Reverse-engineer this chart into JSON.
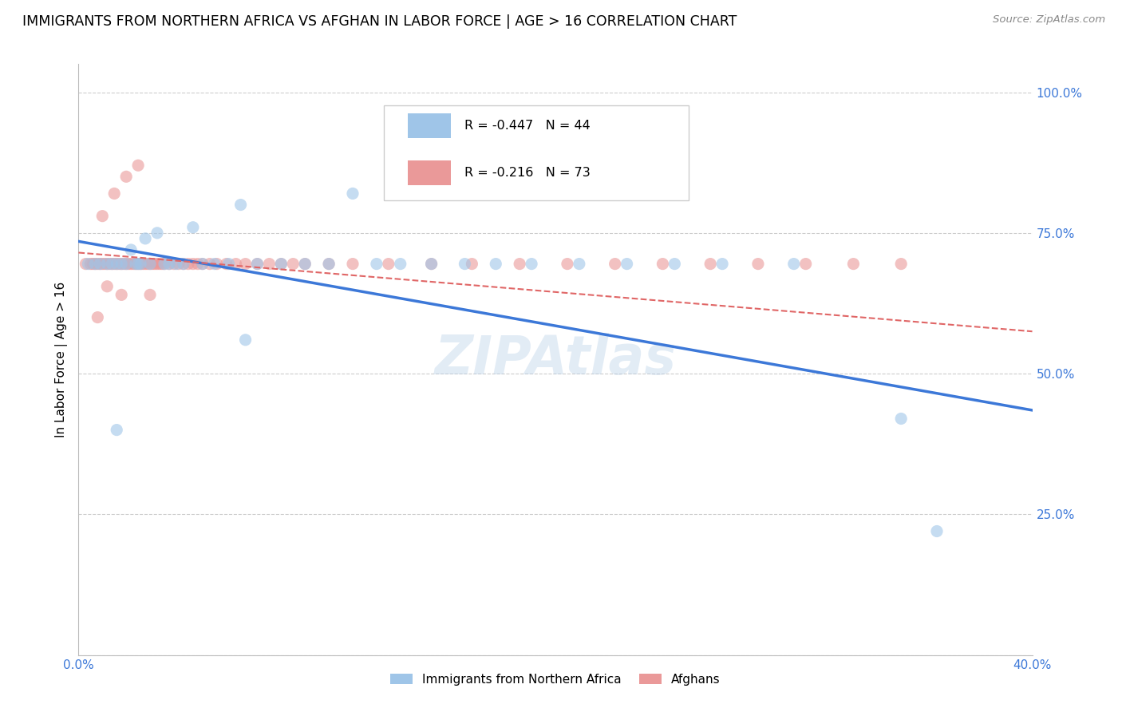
{
  "title": "IMMIGRANTS FROM NORTHERN AFRICA VS AFGHAN IN LABOR FORCE | AGE > 16 CORRELATION CHART",
  "source": "Source: ZipAtlas.com",
  "ylabel": "In Labor Force | Age > 16",
  "xlim": [
    0.0,
    0.4
  ],
  "ylim": [
    0.0,
    1.05
  ],
  "yticks": [
    0.0,
    0.25,
    0.5,
    0.75,
    1.0
  ],
  "ytick_labels": [
    "",
    "25.0%",
    "50.0%",
    "75.0%",
    "100.0%"
  ],
  "xticks": [
    0.0,
    0.05,
    0.1,
    0.15,
    0.2,
    0.25,
    0.3,
    0.35,
    0.4
  ],
  "xtick_labels": [
    "0.0%",
    "",
    "",
    "",
    "",
    "",
    "",
    "",
    "40.0%"
  ],
  "legend_r1": "-0.447",
  "legend_n1": "44",
  "legend_r2": "-0.216",
  "legend_n2": "73",
  "watermark": "ZIPAtlas",
  "color_blue": "#9fc5e8",
  "color_pink": "#ea9999",
  "color_blue_dark": "#3c78d8",
  "color_pink_dark": "#e06666",
  "color_axis_labels": "#3c78d8",
  "color_grid": "#cccccc",
  "title_fontsize": 12.5,
  "axis_label_fontsize": 11,
  "tick_fontsize": 11,
  "blue_line_x": [
    0.0,
    0.4
  ],
  "blue_line_y": [
    0.735,
    0.435
  ],
  "pink_line_x": [
    0.0,
    0.4
  ],
  "pink_line_y": [
    0.715,
    0.575
  ],
  "blue_x": [
    0.004,
    0.007,
    0.009,
    0.012,
    0.014,
    0.016,
    0.018,
    0.02,
    0.022,
    0.024,
    0.026,
    0.028,
    0.03,
    0.033,
    0.036,
    0.038,
    0.041,
    0.044,
    0.048,
    0.052,
    0.057,
    0.063,
    0.068,
    0.075,
    0.085,
    0.095,
    0.105,
    0.115,
    0.125,
    0.135,
    0.148,
    0.162,
    0.175,
    0.19,
    0.21,
    0.23,
    0.25,
    0.27,
    0.3,
    0.345,
    0.016,
    0.025,
    0.07,
    0.36
  ],
  "blue_y": [
    0.695,
    0.695,
    0.695,
    0.695,
    0.695,
    0.695,
    0.695,
    0.695,
    0.72,
    0.695,
    0.695,
    0.74,
    0.695,
    0.75,
    0.695,
    0.695,
    0.695,
    0.695,
    0.76,
    0.695,
    0.695,
    0.695,
    0.8,
    0.695,
    0.695,
    0.695,
    0.695,
    0.82,
    0.695,
    0.695,
    0.695,
    0.695,
    0.695,
    0.695,
    0.695,
    0.695,
    0.695,
    0.695,
    0.695,
    0.42,
    0.4,
    0.695,
    0.56,
    0.22
  ],
  "pink_x": [
    0.003,
    0.005,
    0.006,
    0.007,
    0.008,
    0.009,
    0.01,
    0.011,
    0.012,
    0.013,
    0.014,
    0.015,
    0.016,
    0.017,
    0.018,
    0.019,
    0.02,
    0.021,
    0.022,
    0.023,
    0.024,
    0.025,
    0.026,
    0.027,
    0.028,
    0.029,
    0.03,
    0.031,
    0.032,
    0.033,
    0.034,
    0.035,
    0.036,
    0.038,
    0.04,
    0.042,
    0.044,
    0.046,
    0.048,
    0.05,
    0.052,
    0.055,
    0.058,
    0.062,
    0.066,
    0.07,
    0.075,
    0.08,
    0.085,
    0.09,
    0.095,
    0.105,
    0.115,
    0.13,
    0.148,
    0.165,
    0.185,
    0.205,
    0.225,
    0.245,
    0.265,
    0.285,
    0.305,
    0.325,
    0.345,
    0.01,
    0.015,
    0.02,
    0.025,
    0.03,
    0.008,
    0.012,
    0.018
  ],
  "pink_y": [
    0.695,
    0.695,
    0.695,
    0.695,
    0.695,
    0.695,
    0.695,
    0.695,
    0.695,
    0.695,
    0.695,
    0.695,
    0.695,
    0.695,
    0.695,
    0.695,
    0.695,
    0.695,
    0.695,
    0.695,
    0.695,
    0.695,
    0.695,
    0.695,
    0.695,
    0.695,
    0.695,
    0.695,
    0.695,
    0.695,
    0.695,
    0.695,
    0.695,
    0.695,
    0.695,
    0.695,
    0.695,
    0.695,
    0.695,
    0.695,
    0.695,
    0.695,
    0.695,
    0.695,
    0.695,
    0.695,
    0.695,
    0.695,
    0.695,
    0.695,
    0.695,
    0.695,
    0.695,
    0.695,
    0.695,
    0.695,
    0.695,
    0.695,
    0.695,
    0.695,
    0.695,
    0.695,
    0.695,
    0.695,
    0.695,
    0.78,
    0.82,
    0.85,
    0.87,
    0.64,
    0.6,
    0.655,
    0.64
  ]
}
